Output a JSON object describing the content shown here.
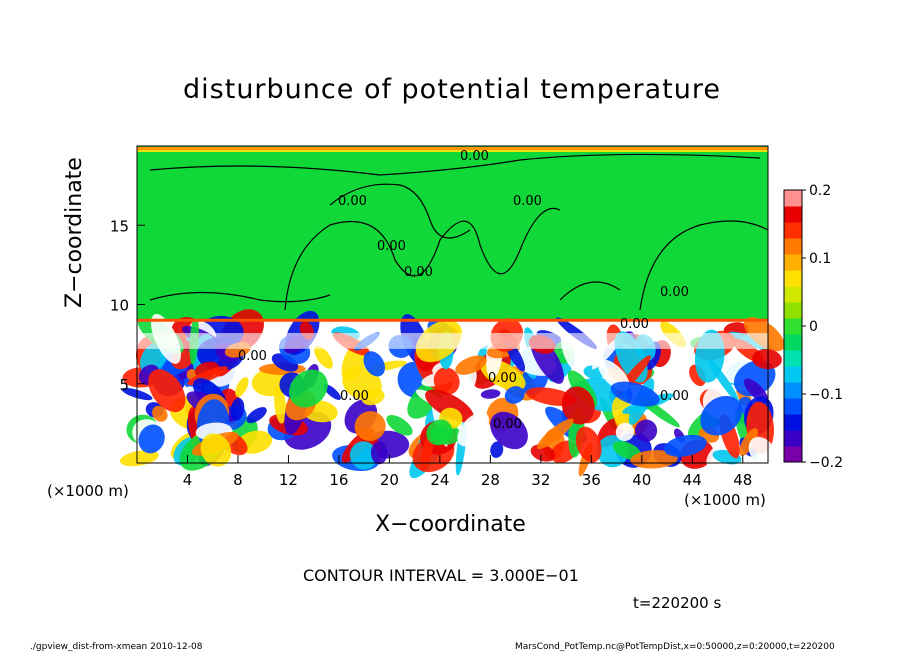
{
  "chart_data": {
    "type": "heatmap",
    "title": "disturbunce of potential temperature",
    "xlabel": "X−coordinate",
    "ylabel": "Z−coordinate",
    "x_unit_left": "(×1000 m)",
    "x_unit_right": "(×1000 m)",
    "xlim": [
      0,
      50
    ],
    "ylim": [
      0,
      20
    ],
    "x_ticks": [
      4,
      8,
      12,
      16,
      20,
      24,
      28,
      32,
      36,
      40,
      44,
      48
    ],
    "y_ticks": [
      5,
      10,
      15
    ],
    "colorbar": {
      "range": [
        -0.2,
        0.2
      ],
      "ticks": [
        "0.2",
        "0.1",
        "0",
        "−0.1",
        "−0.2"
      ],
      "colors": [
        "#7a00a8",
        "#3a00c8",
        "#0010e0",
        "#0050ff",
        "#0090ff",
        "#00c8f0",
        "#00e0b0",
        "#00d860",
        "#30e030",
        "#90e000",
        "#d0e800",
        "#ffe000",
        "#ffb000",
        "#ff7800",
        "#ff3000",
        "#e80000",
        "#ff9090"
      ]
    },
    "upper_field_value": 0.0,
    "contour_labels": [
      "0.00",
      "0.00",
      "0.00",
      "0.00",
      "0.00",
      "0.00",
      "0.00",
      "0.00",
      "0.00",
      "0.00",
      "0.00",
      "0.00"
    ],
    "contour_interval": "CONTOUR INTERVAL = 3.000E−01",
    "time_label": "t=220200 s"
  },
  "footer": {
    "left": "./gpview_dist-from-xmean  2010-12-08",
    "right": "MarsCond_PotTemp.nc@PotTempDist,x=0:50000,z=0:20000,t=220200"
  }
}
